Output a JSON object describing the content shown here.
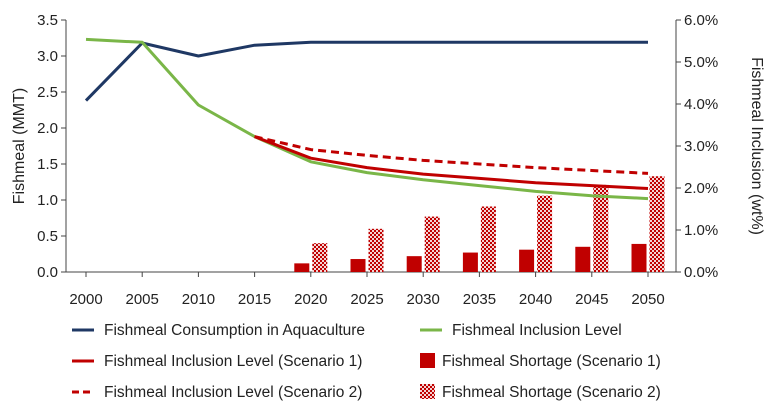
{
  "chart_data": {
    "type": "bar",
    "x": [
      "2000",
      "2005",
      "2010",
      "2015",
      "2020",
      "2025",
      "2030",
      "2035",
      "2040",
      "2045",
      "2050"
    ],
    "ylabel_left": "Fishmeal (MMT)",
    "ylabel_right": "Fishmeal Inclusion (wt%)",
    "ylim_left": [
      0,
      3.5
    ],
    "ylim_right": [
      0,
      6.0
    ],
    "yticks_left": [
      "0.0",
      "0.5",
      "1.0",
      "1.5",
      "2.0",
      "2.5",
      "3.0",
      "3.5"
    ],
    "yticks_right": [
      "0.0%",
      "1.0%",
      "2.0%",
      "3.0%",
      "4.0%",
      "5.0%",
      "6.0%"
    ],
    "grid": false,
    "legend_position": "bottom",
    "series": [
      {
        "name": "Fishmeal Consumption in Aquaculture",
        "kind": "line",
        "axis": "left",
        "color": "#1f3864",
        "style": "solid",
        "values": [
          2.38,
          3.18,
          3.0,
          3.15,
          3.19,
          3.19,
          3.19,
          3.19,
          3.19,
          3.19,
          3.19
        ]
      },
      {
        "name": "Fishmeal Inclusion Level",
        "kind": "line",
        "axis": "left",
        "color": "#7ab648",
        "style": "solid",
        "values": [
          3.23,
          3.19,
          2.32,
          1.88,
          1.53,
          1.38,
          1.28,
          1.2,
          1.12,
          1.06,
          1.02
        ]
      },
      {
        "name": "Fishmeal Inclusion Level (Scenario 1)",
        "kind": "line",
        "axis": "left",
        "color": "#c00000",
        "style": "solid",
        "values": [
          null,
          null,
          null,
          1.88,
          1.58,
          1.45,
          1.36,
          1.3,
          1.24,
          1.2,
          1.16
        ]
      },
      {
        "name": "Fishmeal Inclusion Level (Scenario 2)",
        "kind": "line",
        "axis": "left",
        "color": "#c00000",
        "style": "dashed",
        "values": [
          null,
          null,
          null,
          1.88,
          1.7,
          1.62,
          1.55,
          1.5,
          1.45,
          1.41,
          1.37
        ]
      },
      {
        "name": "Fishmeal Shortage (Scenario 1)",
        "kind": "bar",
        "axis": "left",
        "color": "#c00000",
        "pattern": "solid",
        "values": [
          null,
          null,
          null,
          null,
          0.12,
          0.18,
          0.22,
          0.27,
          0.31,
          0.35,
          0.39
        ]
      },
      {
        "name": "Fishmeal Shortage (Scenario 2)",
        "kind": "bar",
        "axis": "left",
        "color": "#c00000",
        "pattern": "checker",
        "values": [
          null,
          null,
          null,
          null,
          0.4,
          0.6,
          0.77,
          0.91,
          1.06,
          1.21,
          1.33
        ]
      }
    ]
  }
}
